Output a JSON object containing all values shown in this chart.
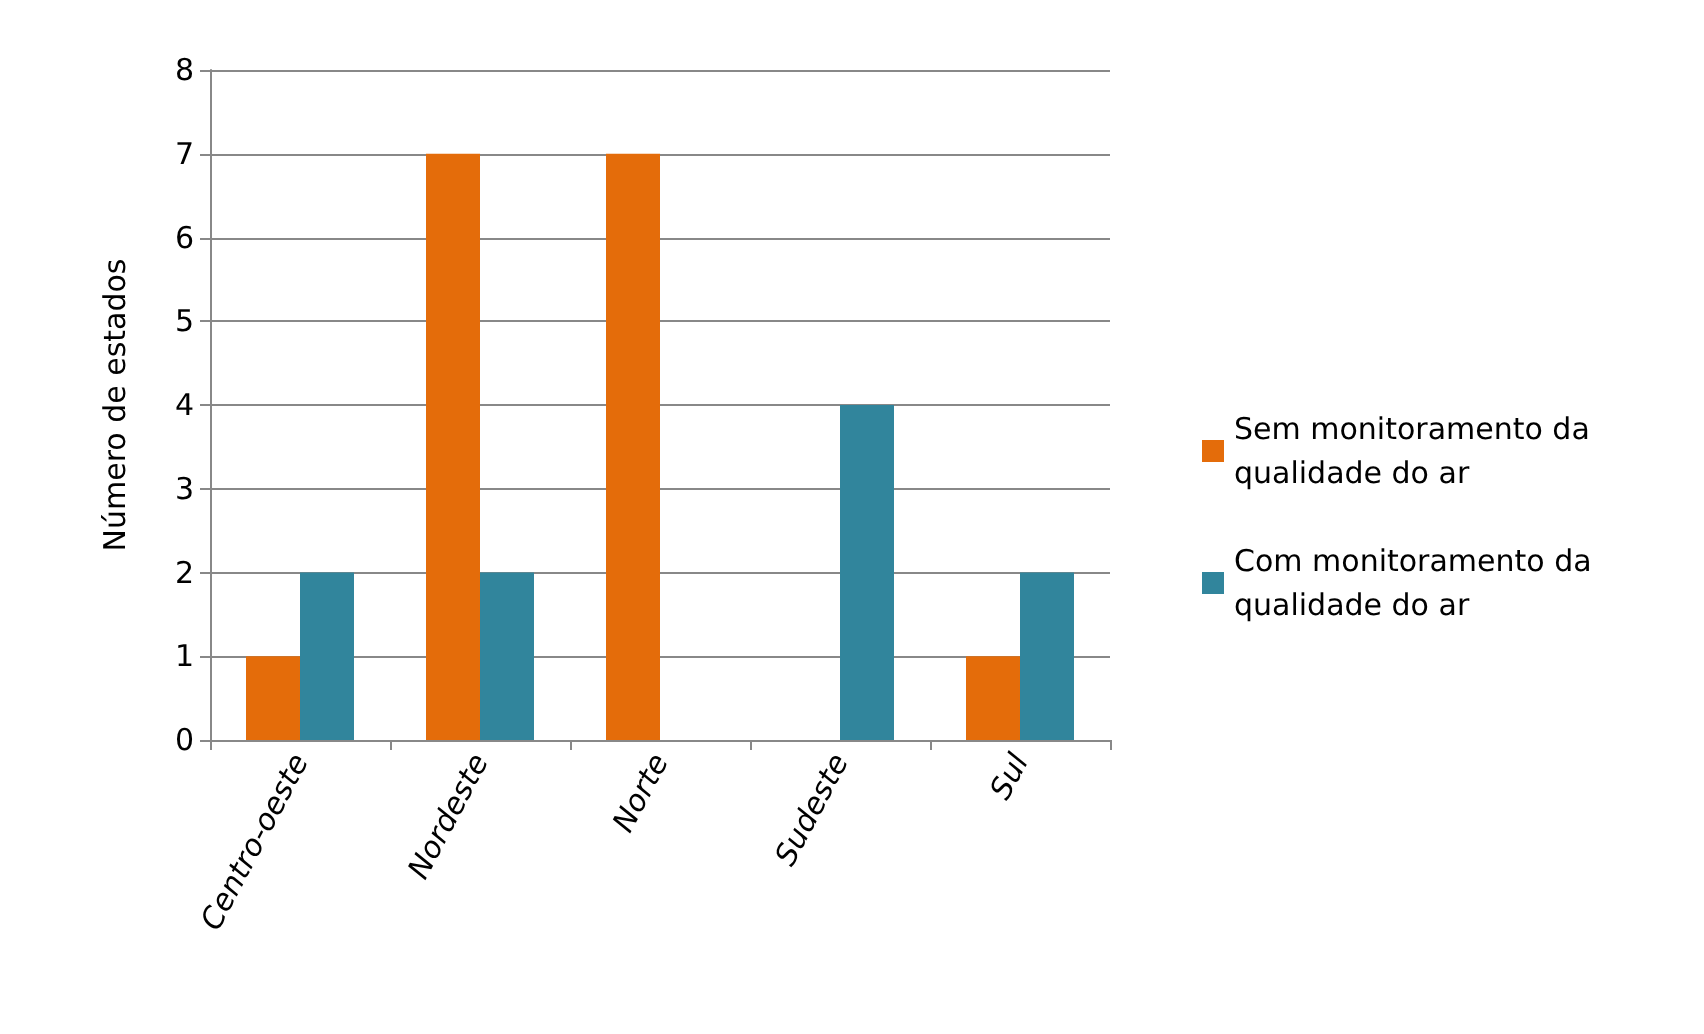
{
  "chart_data": {
    "type": "bar",
    "ylabel": "Número de estados",
    "categories": [
      "Centro-oeste",
      "Nordeste",
      "Norte",
      "Sudeste",
      "Sul"
    ],
    "series": [
      {
        "name": "Sem monitoramento da qualidade do ar",
        "color": "#e46c0a",
        "values": [
          1,
          7,
          7,
          0,
          1
        ]
      },
      {
        "name": "Com monitoramento da qualidade do ar",
        "color": "#31859c",
        "values": [
          2,
          2,
          0,
          4,
          2
        ]
      }
    ],
    "ylim": [
      0,
      8
    ],
    "yticks": [
      0,
      1,
      2,
      3,
      4,
      5,
      6,
      7,
      8
    ],
    "grid": "y",
    "legend": "right"
  }
}
